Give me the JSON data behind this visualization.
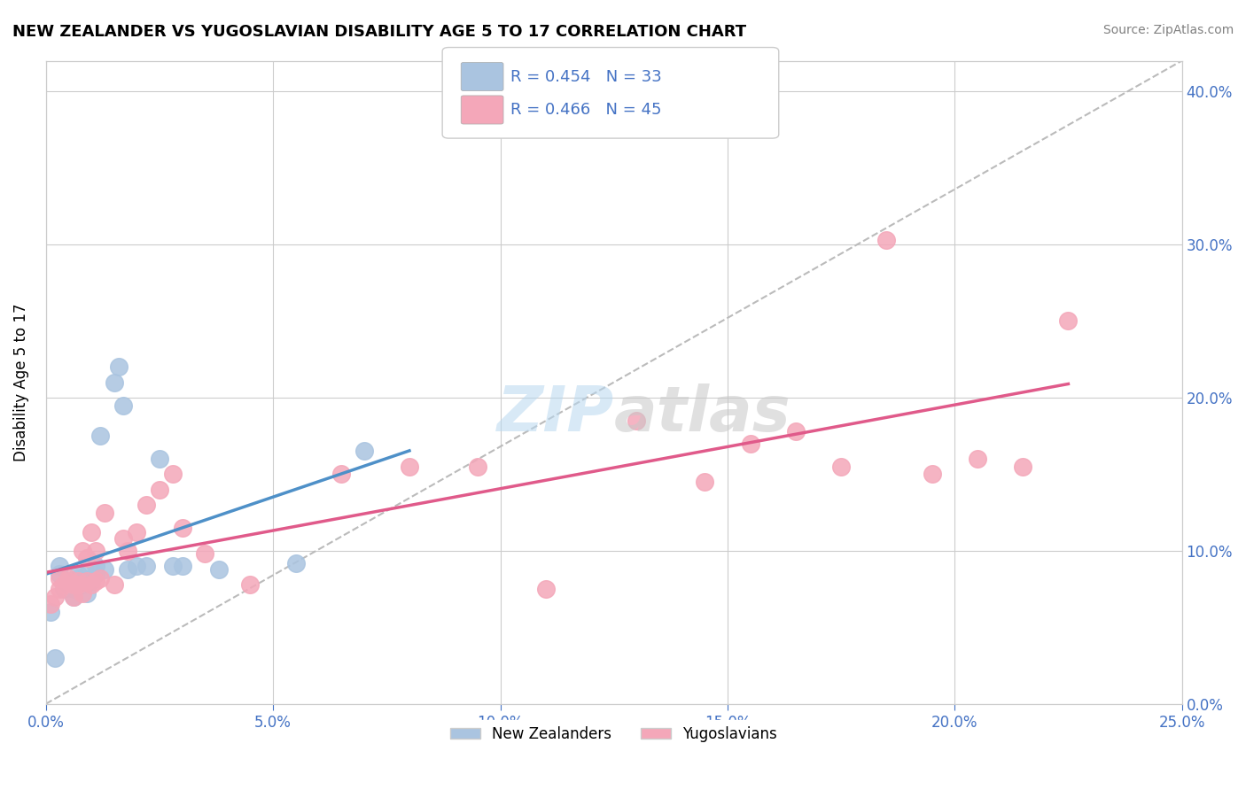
{
  "title": "NEW ZEALANDER VS YUGOSLAVIAN DISABILITY AGE 5 TO 17 CORRELATION CHART",
  "source": "Source: ZipAtlas.com",
  "xlim": [
    0.0,
    0.25
  ],
  "ylim": [
    0.0,
    0.42
  ],
  "ylabel": "Disability Age 5 to 17",
  "legend_label1": "New Zealanders",
  "legend_label2": "Yugoslavians",
  "r1": 0.454,
  "n1": 33,
  "r2": 0.466,
  "n2": 45,
  "color1": "#aac4e0",
  "color2": "#f4a7b9",
  "line_color1": "#4e90c8",
  "line_color2": "#e05a8a",
  "background_color": "#ffffff",
  "watermark_zip": "ZIP",
  "watermark_atlas": "atlas",
  "nz_x": [
    0.001,
    0.002,
    0.003,
    0.003,
    0.004,
    0.005,
    0.005,
    0.006,
    0.006,
    0.007,
    0.007,
    0.008,
    0.008,
    0.009,
    0.009,
    0.01,
    0.01,
    0.011,
    0.011,
    0.012,
    0.013,
    0.015,
    0.016,
    0.017,
    0.018,
    0.02,
    0.022,
    0.025,
    0.028,
    0.03,
    0.038,
    0.055,
    0.07
  ],
  "nz_y": [
    0.06,
    0.03,
    0.09,
    0.085,
    0.075,
    0.078,
    0.08,
    0.075,
    0.07,
    0.082,
    0.085,
    0.078,
    0.08,
    0.085,
    0.072,
    0.08,
    0.082,
    0.085,
    0.09,
    0.175,
    0.088,
    0.21,
    0.22,
    0.195,
    0.088,
    0.09,
    0.09,
    0.16,
    0.09,
    0.09,
    0.088,
    0.092,
    0.165
  ],
  "yu_x": [
    0.001,
    0.002,
    0.003,
    0.003,
    0.004,
    0.005,
    0.005,
    0.006,
    0.006,
    0.007,
    0.007,
    0.008,
    0.008,
    0.009,
    0.009,
    0.01,
    0.01,
    0.011,
    0.011,
    0.012,
    0.013,
    0.015,
    0.017,
    0.018,
    0.02,
    0.022,
    0.025,
    0.028,
    0.03,
    0.035,
    0.045,
    0.065,
    0.08,
    0.095,
    0.11,
    0.13,
    0.145,
    0.155,
    0.165,
    0.175,
    0.185,
    0.195,
    0.205,
    0.215,
    0.225
  ],
  "yu_y": [
    0.065,
    0.07,
    0.075,
    0.082,
    0.078,
    0.08,
    0.082,
    0.078,
    0.07,
    0.08,
    0.078,
    0.1,
    0.072,
    0.08,
    0.095,
    0.078,
    0.112,
    0.08,
    0.1,
    0.082,
    0.125,
    0.078,
    0.108,
    0.1,
    0.112,
    0.13,
    0.14,
    0.15,
    0.115,
    0.098,
    0.078,
    0.15,
    0.155,
    0.155,
    0.075,
    0.185,
    0.145,
    0.17,
    0.178,
    0.155,
    0.303,
    0.15,
    0.16,
    0.155,
    0.25
  ]
}
